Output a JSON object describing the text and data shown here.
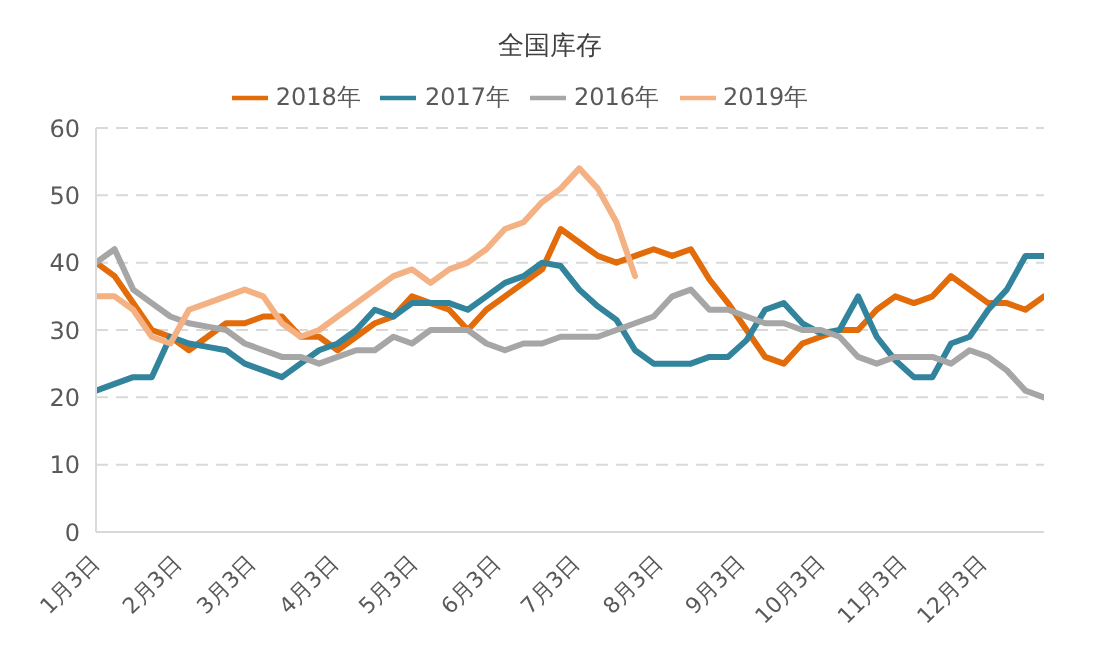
{
  "chart_data": {
    "type": "line",
    "title": "全国库存",
    "x": [
      "--01-03",
      "--01-10",
      "--01-17",
      "--01-24",
      "--01-31",
      "--02-07",
      "--02-14",
      "--02-21",
      "--02-28",
      "--03-07",
      "--03-14",
      "--03-21",
      "--03-28",
      "--04-04",
      "--04-11",
      "--04-18",
      "--04-25",
      "--05-02",
      "--05-09",
      "--05-16",
      "--05-23",
      "--05-30",
      "--06-06",
      "--06-13",
      "--06-20",
      "--06-27",
      "--07-04",
      "--07-11",
      "--07-18",
      "--07-25",
      "--08-01",
      "--08-08",
      "--08-15",
      "--08-22",
      "--08-29",
      "--09-05",
      "--09-12",
      "--09-19",
      "--09-26",
      "--10-03",
      "--10-10",
      "--10-17",
      "--10-24",
      "--10-31",
      "--11-07",
      "--11-14",
      "--11-21",
      "--11-28",
      "--12-05",
      "--12-12",
      "--12-19",
      "--12-26"
    ],
    "series": [
      {
        "name": "2018年",
        "color": "#e26b0a",
        "values": [
          40,
          38,
          34,
          30,
          29,
          27,
          29,
          31,
          31,
          32,
          32,
          29,
          29,
          27,
          29,
          31,
          32,
          35,
          34,
          33,
          30,
          33,
          35,
          37,
          39,
          45,
          43,
          41,
          40,
          41,
          42,
          41,
          42,
          37.5,
          34,
          30,
          26,
          25,
          28,
          29,
          30,
          30,
          33,
          35,
          34,
          35,
          38,
          36,
          34,
          34,
          33,
          35
        ]
      },
      {
        "name": "2017年",
        "color": "#31849b",
        "values": [
          21,
          22,
          23,
          23,
          29,
          28,
          27.5,
          27,
          25,
          24,
          23,
          25,
          27,
          28,
          30,
          33,
          32,
          34,
          34,
          34,
          33,
          35,
          37,
          38,
          40,
          39.5,
          36,
          33.5,
          31.5,
          27,
          25,
          25,
          25,
          26,
          26,
          28.5,
          33,
          34,
          31,
          29.5,
          30,
          35,
          29,
          25.5,
          23,
          23,
          28,
          29,
          33,
          36,
          41,
          41
        ]
      },
      {
        "name": "2016年",
        "color": "#a6a6a6",
        "values": [
          40,
          42,
          36,
          34,
          32,
          31,
          30.5,
          30,
          28,
          27,
          26,
          26,
          25,
          26,
          27,
          27,
          29,
          28,
          30,
          30,
          30,
          28,
          27,
          28,
          28,
          29,
          29,
          29,
          30,
          31,
          32,
          35,
          36,
          33,
          33,
          32,
          31,
          31,
          30,
          30,
          29,
          26,
          25,
          26,
          26,
          26,
          25,
          27,
          26,
          24,
          21,
          20
        ]
      },
      {
        "name": "2019年",
        "color": "#f4b183",
        "values": [
          35,
          35,
          33,
          29,
          28,
          33,
          34,
          35,
          36,
          35,
          31,
          29,
          30,
          32,
          34,
          36,
          38,
          39,
          37,
          39,
          40,
          42,
          45,
          46,
          49,
          51,
          54,
          51,
          46,
          38,
          null,
          null,
          null,
          null,
          null,
          null,
          null,
          null,
          null,
          null,
          null,
          null,
          null,
          null,
          null,
          null,
          null,
          null,
          null,
          null,
          null,
          null
        ]
      }
    ],
    "xlim": [
      "--01-03",
      "--12-26"
    ],
    "xticks": [
      {
        "value": "--01-03",
        "label": "1月3日"
      },
      {
        "value": "--02-03",
        "label": "2月3日"
      },
      {
        "value": "--03-03",
        "label": "3月3日"
      },
      {
        "value": "--04-03",
        "label": "4月3日"
      },
      {
        "value": "--05-03",
        "label": "5月3日"
      },
      {
        "value": "--06-03",
        "label": "6月3日"
      },
      {
        "value": "--07-03",
        "label": "7月3日"
      },
      {
        "value": "--08-03",
        "label": "8月3日"
      },
      {
        "value": "--09-03",
        "label": "9月3日"
      },
      {
        "value": "--10-03",
        "label": "10月3日"
      },
      {
        "value": "--11-03",
        "label": "11月3日"
      },
      {
        "value": "--12-03",
        "label": "12月3日"
      }
    ],
    "ylim": [
      0,
      60
    ],
    "yticks": [
      0,
      10,
      20,
      30,
      40,
      50,
      60
    ],
    "grid": "y",
    "legend": "top",
    "marker": "none",
    "line_style": "solid"
  }
}
